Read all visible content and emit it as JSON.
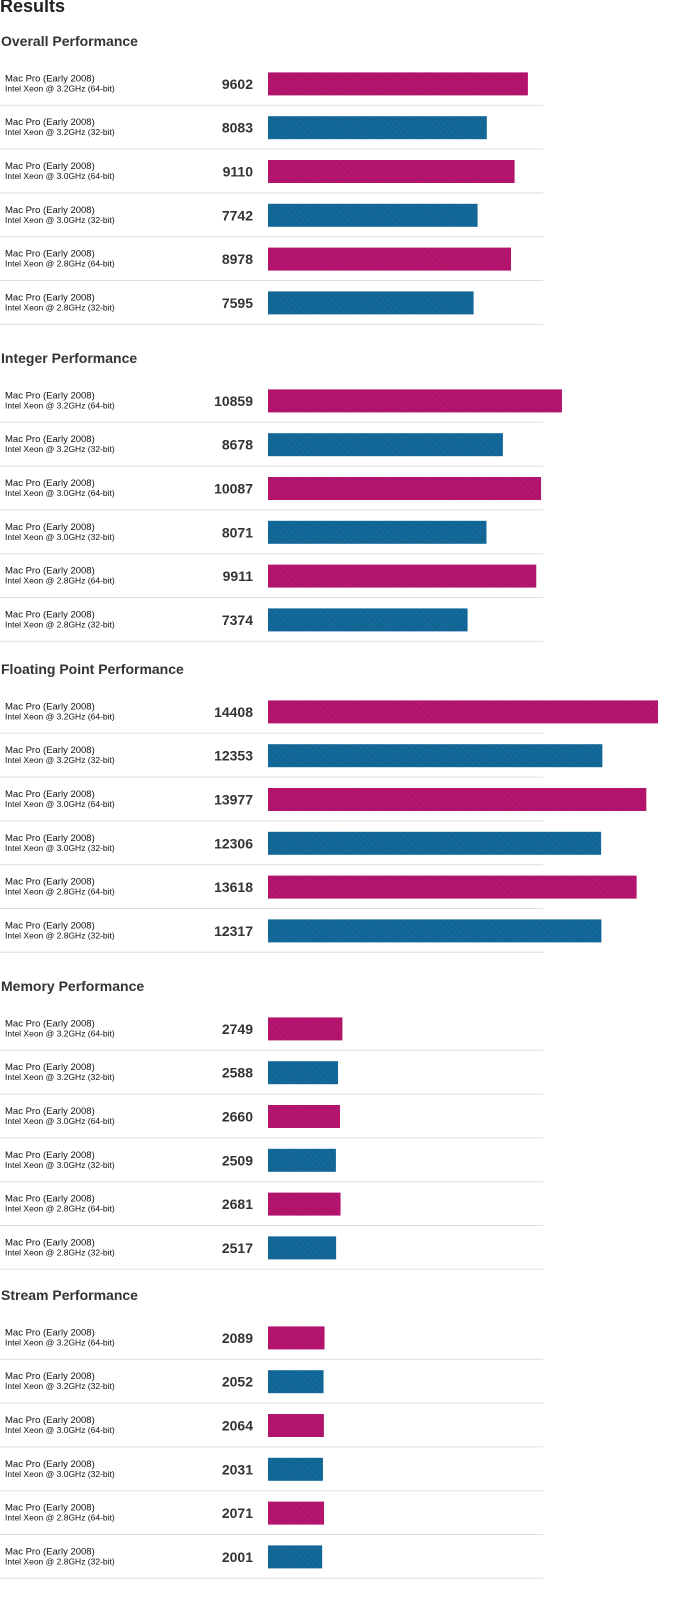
{
  "page": {
    "title": "Results",
    "colors": {
      "series_64bit": "#b5156f",
      "series_32bit": "#13699a",
      "separator": "#dddddd"
    }
  },
  "chart_data": [
    {
      "type": "bar",
      "orientation": "horizontal",
      "title": "Overall Performance",
      "categories": [
        {
          "name": "Mac Pro (Early 2008)",
          "sub": "Intel Xeon @ 3.2GHz (64-bit)"
        },
        {
          "name": "Mac Pro (Early 2008)",
          "sub": "Intel Xeon @ 3.2GHz (32-bit)"
        },
        {
          "name": "Mac Pro (Early 2008)",
          "sub": "Intel Xeon @ 3.0GHz (64-bit)"
        },
        {
          "name": "Mac Pro (Early 2008)",
          "sub": "Intel Xeon @ 3.0GHz (32-bit)"
        },
        {
          "name": "Mac Pro (Early 2008)",
          "sub": "Intel Xeon @ 2.8GHz (64-bit)"
        },
        {
          "name": "Mac Pro (Early 2008)",
          "sub": "Intel Xeon @ 2.8GHz (32-bit)"
        }
      ],
      "values": [
        9602,
        8083,
        9110,
        7742,
        8978,
        7595
      ],
      "bar_colors": [
        "#b5156f",
        "#13699a",
        "#b5156f",
        "#13699a",
        "#b5156f",
        "#13699a"
      ],
      "xlim": [
        0,
        14408
      ]
    },
    {
      "type": "bar",
      "orientation": "horizontal",
      "title": "Integer Performance",
      "categories": [
        {
          "name": "Mac Pro (Early 2008)",
          "sub": "Intel Xeon @ 3.2GHz (64-bit)"
        },
        {
          "name": "Mac Pro (Early 2008)",
          "sub": "Intel Xeon @ 3.2GHz (32-bit)"
        },
        {
          "name": "Mac Pro (Early 2008)",
          "sub": "Intel Xeon @ 3.0GHz (64-bit)"
        },
        {
          "name": "Mac Pro (Early 2008)",
          "sub": "Intel Xeon @ 3.0GHz (32-bit)"
        },
        {
          "name": "Mac Pro (Early 2008)",
          "sub": "Intel Xeon @ 2.8GHz (64-bit)"
        },
        {
          "name": "Mac Pro (Early 2008)",
          "sub": "Intel Xeon @ 2.8GHz (32-bit)"
        }
      ],
      "values": [
        10859,
        8678,
        10087,
        8071,
        9911,
        7374
      ],
      "bar_colors": [
        "#b5156f",
        "#13699a",
        "#b5156f",
        "#13699a",
        "#b5156f",
        "#13699a"
      ],
      "xlim": [
        0,
        14408
      ]
    },
    {
      "type": "bar",
      "orientation": "horizontal",
      "title": "Floating Point Performance",
      "categories": [
        {
          "name": "Mac Pro (Early 2008)",
          "sub": "Intel Xeon @ 3.2GHz (64-bit)"
        },
        {
          "name": "Mac Pro (Early 2008)",
          "sub": "Intel Xeon @ 3.2GHz (32-bit)"
        },
        {
          "name": "Mac Pro (Early 2008)",
          "sub": "Intel Xeon @ 3.0GHz (64-bit)"
        },
        {
          "name": "Mac Pro (Early 2008)",
          "sub": "Intel Xeon @ 3.0GHz (32-bit)"
        },
        {
          "name": "Mac Pro (Early 2008)",
          "sub": "Intel Xeon @ 2.8GHz (64-bit)"
        },
        {
          "name": "Mac Pro (Early 2008)",
          "sub": "Intel Xeon @ 2.8GHz (32-bit)"
        }
      ],
      "values": [
        14408,
        12353,
        13977,
        12306,
        13618,
        12317
      ],
      "bar_colors": [
        "#b5156f",
        "#13699a",
        "#b5156f",
        "#13699a",
        "#b5156f",
        "#13699a"
      ],
      "xlim": [
        0,
        14408
      ]
    },
    {
      "type": "bar",
      "orientation": "horizontal",
      "title": "Memory Performance",
      "categories": [
        {
          "name": "Mac Pro (Early 2008)",
          "sub": "Intel Xeon @ 3.2GHz (64-bit)"
        },
        {
          "name": "Mac Pro (Early 2008)",
          "sub": "Intel Xeon @ 3.2GHz (32-bit)"
        },
        {
          "name": "Mac Pro (Early 2008)",
          "sub": "Intel Xeon @ 3.0GHz (64-bit)"
        },
        {
          "name": "Mac Pro (Early 2008)",
          "sub": "Intel Xeon @ 3.0GHz (32-bit)"
        },
        {
          "name": "Mac Pro (Early 2008)",
          "sub": "Intel Xeon @ 2.8GHz (64-bit)"
        },
        {
          "name": "Mac Pro (Early 2008)",
          "sub": "Intel Xeon @ 2.8GHz (32-bit)"
        }
      ],
      "values": [
        2749,
        2588,
        2660,
        2509,
        2681,
        2517
      ],
      "bar_colors": [
        "#b5156f",
        "#13699a",
        "#b5156f",
        "#13699a",
        "#b5156f",
        "#13699a"
      ],
      "xlim": [
        0,
        14408
      ]
    },
    {
      "type": "bar",
      "orientation": "horizontal",
      "title": "Stream Performance",
      "categories": [
        {
          "name": "Mac Pro (Early 2008)",
          "sub": "Intel Xeon @ 3.2GHz (64-bit)"
        },
        {
          "name": "Mac Pro (Early 2008)",
          "sub": "Intel Xeon @ 3.2GHz (32-bit)"
        },
        {
          "name": "Mac Pro (Early 2008)",
          "sub": "Intel Xeon @ 3.0GHz (64-bit)"
        },
        {
          "name": "Mac Pro (Early 2008)",
          "sub": "Intel Xeon @ 3.0GHz (32-bit)"
        },
        {
          "name": "Mac Pro (Early 2008)",
          "sub": "Intel Xeon @ 2.8GHz (64-bit)"
        },
        {
          "name": "Mac Pro (Early 2008)",
          "sub": "Intel Xeon @ 2.8GHz (32-bit)"
        }
      ],
      "values": [
        2089,
        2052,
        2064,
        2031,
        2071,
        2001
      ],
      "bar_colors": [
        "#b5156f",
        "#13699a",
        "#b5156f",
        "#13699a",
        "#b5156f",
        "#13699a"
      ],
      "xlim": [
        0,
        14408
      ]
    }
  ]
}
